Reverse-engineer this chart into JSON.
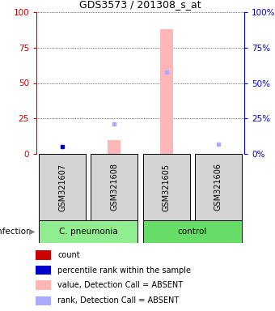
{
  "title": "GDS3573 / 201308_s_at",
  "samples": [
    "GSM321607",
    "GSM321608",
    "GSM321605",
    "GSM321606"
  ],
  "ylim": [
    0,
    100
  ],
  "yticks": [
    0,
    25,
    50,
    75,
    100
  ],
  "left_axis_color": "#cc0000",
  "right_axis_color": "#0000cc",
  "bar_values": [
    null,
    10,
    88,
    null
  ],
  "bar_color_absent": "#ffb6b6",
  "count_values": [
    null,
    null,
    null,
    null
  ],
  "rank_values": [
    5,
    21,
    58,
    7
  ],
  "rank_is_absent": [
    false,
    true,
    true,
    true
  ],
  "rank_color_present": "#0000cc",
  "rank_color_absent": "#aaaaff",
  "legend_colors": [
    "#cc0000",
    "#0000cc",
    "#ffb6b6",
    "#aaaaff"
  ],
  "legend_labels": [
    "count",
    "percentile rank within the sample",
    "value, Detection Call = ABSENT",
    "rank, Detection Call = ABSENT"
  ],
  "group1_label": "C. pneumonia",
  "group2_label": "control",
  "group1_color": "#90ee90",
  "group2_color": "#66dd66",
  "infection_label": "infection",
  "fig_width": 3.4,
  "fig_height": 3.84
}
